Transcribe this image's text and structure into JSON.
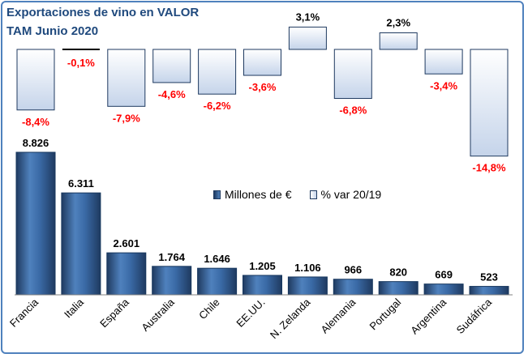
{
  "title_line1": "Exportaciones de vino en VALOR",
  "title_line2": "TAM Junio 2020",
  "legend": {
    "bar_label": "Millones de €",
    "var_label": "% var 20/19"
  },
  "colors": {
    "bar_dark": "#1f3a60",
    "bar_light": "#4f81bd",
    "negative_label": "#ff0000",
    "positive_label": "#000000",
    "title": "#1f497d",
    "frame": "#4f81bd"
  },
  "chart_data": {
    "type": "bar",
    "categories": [
      "Francia",
      "Italia",
      "España",
      "Australia",
      "Chile",
      "EE.UU.",
      "N. Zelanda",
      "Alemania",
      "Portugal",
      "Argentina",
      "Sudáfrica"
    ],
    "series": [
      {
        "name": "Millones de €",
        "values": [
          8826,
          6311,
          2601,
          1764,
          1646,
          1205,
          1106,
          966,
          820,
          669,
          523
        ],
        "labels": [
          "8.826",
          "6.311",
          "2.601",
          "1.764",
          "1.646",
          "1.205",
          "1.106",
          "966",
          "820",
          "669",
          "523"
        ]
      },
      {
        "name": "% var 20/19",
        "values": [
          -8.4,
          -0.1,
          -7.9,
          -4.6,
          -6.2,
          -3.6,
          3.1,
          -6.8,
          2.3,
          -3.4,
          -14.8
        ],
        "labels": [
          "-8,4%",
          "-0,1%",
          "-7,9%",
          "-4,6%",
          "-6,2%",
          "-3,6%",
          "3,1%",
          "-6,8%",
          "2,3%",
          "-3,4%",
          "-14,8%"
        ]
      }
    ],
    "legend_position": "center-right",
    "grid": false
  }
}
